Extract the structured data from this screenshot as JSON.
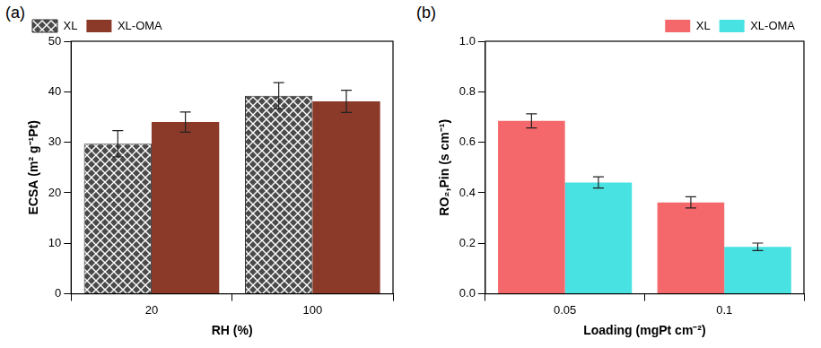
{
  "chart_data": [
    {
      "type": "bar",
      "title": "(a)",
      "x_label": "RH (%)",
      "y_label": "ECSA (m² g⁻¹Pt)",
      "categories": [
        "20",
        "100"
      ],
      "series": [
        {
          "name": "XL",
          "color": "#4a4a4a",
          "values": [
            29.7,
            39.2
          ],
          "errors": [
            2.6,
            2.6
          ]
        },
        {
          "name": "XL-OMA",
          "color": "#8b3a2a",
          "values": [
            34.0,
            38.1
          ],
          "errors": [
            2.0,
            2.2
          ]
        }
      ],
      "ylim": [
        0,
        50
      ],
      "yticks": [
        0,
        10,
        20,
        30,
        40,
        50
      ],
      "grid": false,
      "legend": "upper left"
    },
    {
      "type": "bar",
      "title": "(b)",
      "x_label": "Loading (mgPt cm⁻²)",
      "y_label": "RO₂,Pin (s cm⁻¹)",
      "categories": [
        "0.05",
        "0.1"
      ],
      "series": [
        {
          "name": "XL",
          "color": "#f4676a",
          "values": [
            0.685,
            0.362
          ],
          "errors": [
            0.028,
            0.022
          ]
        },
        {
          "name": "XL-OMA",
          "color": "#48e2e2",
          "values": [
            0.441,
            0.186
          ],
          "errors": [
            0.022,
            0.015
          ]
        }
      ],
      "ylim": [
        0,
        1
      ],
      "yticks": [
        {
          "value": 0,
          "label": "0.0"
        },
        0.2,
        0.4,
        0.6,
        0.8,
        {
          "value": 1,
          "label": "1.0"
        }
      ],
      "grid": false,
      "legend": "upper right"
    }
  ]
}
